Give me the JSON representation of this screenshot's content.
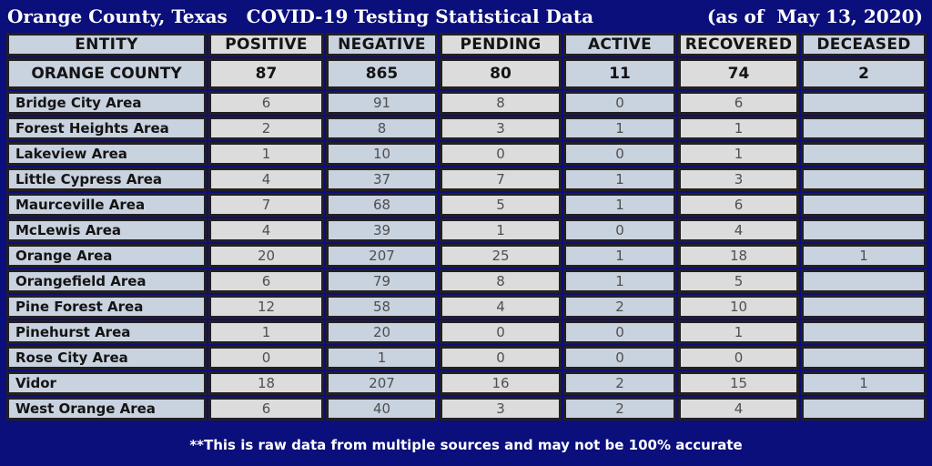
{
  "title": {
    "left": "Orange County, Texas   COVID-19 Testing Statistical Data",
    "right": "(as of  May 13, 2020)"
  },
  "table": {
    "columns": [
      "ENTITY",
      "POSITIVE",
      "NEGATIVE",
      "PENDING",
      "ACTIVE",
      "RECOVERED",
      "DECEASED"
    ],
    "summary_row": {
      "entity": "ORANGE COUNTY",
      "values": [
        "87",
        "865",
        "80",
        "11",
        "74",
        "2"
      ]
    },
    "rows": [
      {
        "entity": "Bridge City Area",
        "values": [
          "6",
          "91",
          "8",
          "0",
          "6",
          ""
        ]
      },
      {
        "entity": "Forest Heights Area",
        "values": [
          "2",
          "8",
          "3",
          "1",
          "1",
          ""
        ]
      },
      {
        "entity": "Lakeview Area",
        "values": [
          "1",
          "10",
          "0",
          "0",
          "1",
          ""
        ]
      },
      {
        "entity": "Little Cypress Area",
        "values": [
          "4",
          "37",
          "7",
          "1",
          "3",
          ""
        ]
      },
      {
        "entity": "Maurceville Area",
        "values": [
          "7",
          "68",
          "5",
          "1",
          "6",
          ""
        ]
      },
      {
        "entity": "McLewis Area",
        "values": [
          "4",
          "39",
          "1",
          "0",
          "4",
          ""
        ]
      },
      {
        "entity": "Orange Area",
        "values": [
          "20",
          "207",
          "25",
          "1",
          "18",
          "1"
        ]
      },
      {
        "entity": "Orangefield Area",
        "values": [
          "6",
          "79",
          "8",
          "1",
          "5",
          ""
        ]
      },
      {
        "entity": "Pine Forest Area",
        "values": [
          "12",
          "58",
          "4",
          "2",
          "10",
          ""
        ]
      },
      {
        "entity": "Pinehurst Area",
        "values": [
          "1",
          "20",
          "0",
          "0",
          "1",
          ""
        ]
      },
      {
        "entity": "Rose City Area",
        "values": [
          "0",
          "1",
          "0",
          "0",
          "0",
          ""
        ]
      },
      {
        "entity": "Vidor",
        "values": [
          "18",
          "207",
          "16",
          "2",
          "15",
          "1"
        ]
      },
      {
        "entity": "West Orange Area",
        "values": [
          "6",
          "40",
          "3",
          "2",
          "4",
          ""
        ]
      }
    ]
  },
  "footer": {
    "note": "**This is raw data from multiple sources and may not be 100% accurate"
  },
  "colors": {
    "background": "#0B0F7B",
    "cell_blue": "#C9D2DF",
    "cell_gray": "#DCDCDC",
    "border": "#231F20",
    "number_text": "#4F4F4F",
    "label_text": "#141414",
    "title_text": "#FFFFFF"
  },
  "chart_data": {
    "type": "table",
    "title": "Orange County, Texas COVID-19 Testing Statistical Data (as of May 13, 2020)",
    "columns": [
      "ENTITY",
      "POSITIVE",
      "NEGATIVE",
      "PENDING",
      "ACTIVE",
      "RECOVERED",
      "DECEASED"
    ],
    "rows": [
      [
        "ORANGE COUNTY",
        87,
        865,
        80,
        11,
        74,
        2
      ],
      [
        "Bridge City Area",
        6,
        91,
        8,
        0,
        6,
        null
      ],
      [
        "Forest Heights Area",
        2,
        8,
        3,
        1,
        1,
        null
      ],
      [
        "Lakeview Area",
        1,
        10,
        0,
        0,
        1,
        null
      ],
      [
        "Little Cypress Area",
        4,
        37,
        7,
        1,
        3,
        null
      ],
      [
        "Maurceville Area",
        7,
        68,
        5,
        1,
        6,
        null
      ],
      [
        "McLewis Area",
        4,
        39,
        1,
        0,
        4,
        null
      ],
      [
        "Orange Area",
        20,
        207,
        25,
        1,
        18,
        1
      ],
      [
        "Orangefield Area",
        6,
        79,
        8,
        1,
        5,
        null
      ],
      [
        "Pine Forest Area",
        12,
        58,
        4,
        2,
        10,
        null
      ],
      [
        "Pinehurst Area",
        1,
        20,
        0,
        0,
        1,
        null
      ],
      [
        "Rose City Area",
        0,
        1,
        0,
        0,
        0,
        null
      ],
      [
        "Vidor",
        18,
        207,
        16,
        2,
        15,
        1
      ],
      [
        "West Orange Area",
        6,
        40,
        3,
        2,
        4,
        null
      ]
    ],
    "footnote": "**This is raw data from multiple sources and may not be 100% accurate"
  }
}
